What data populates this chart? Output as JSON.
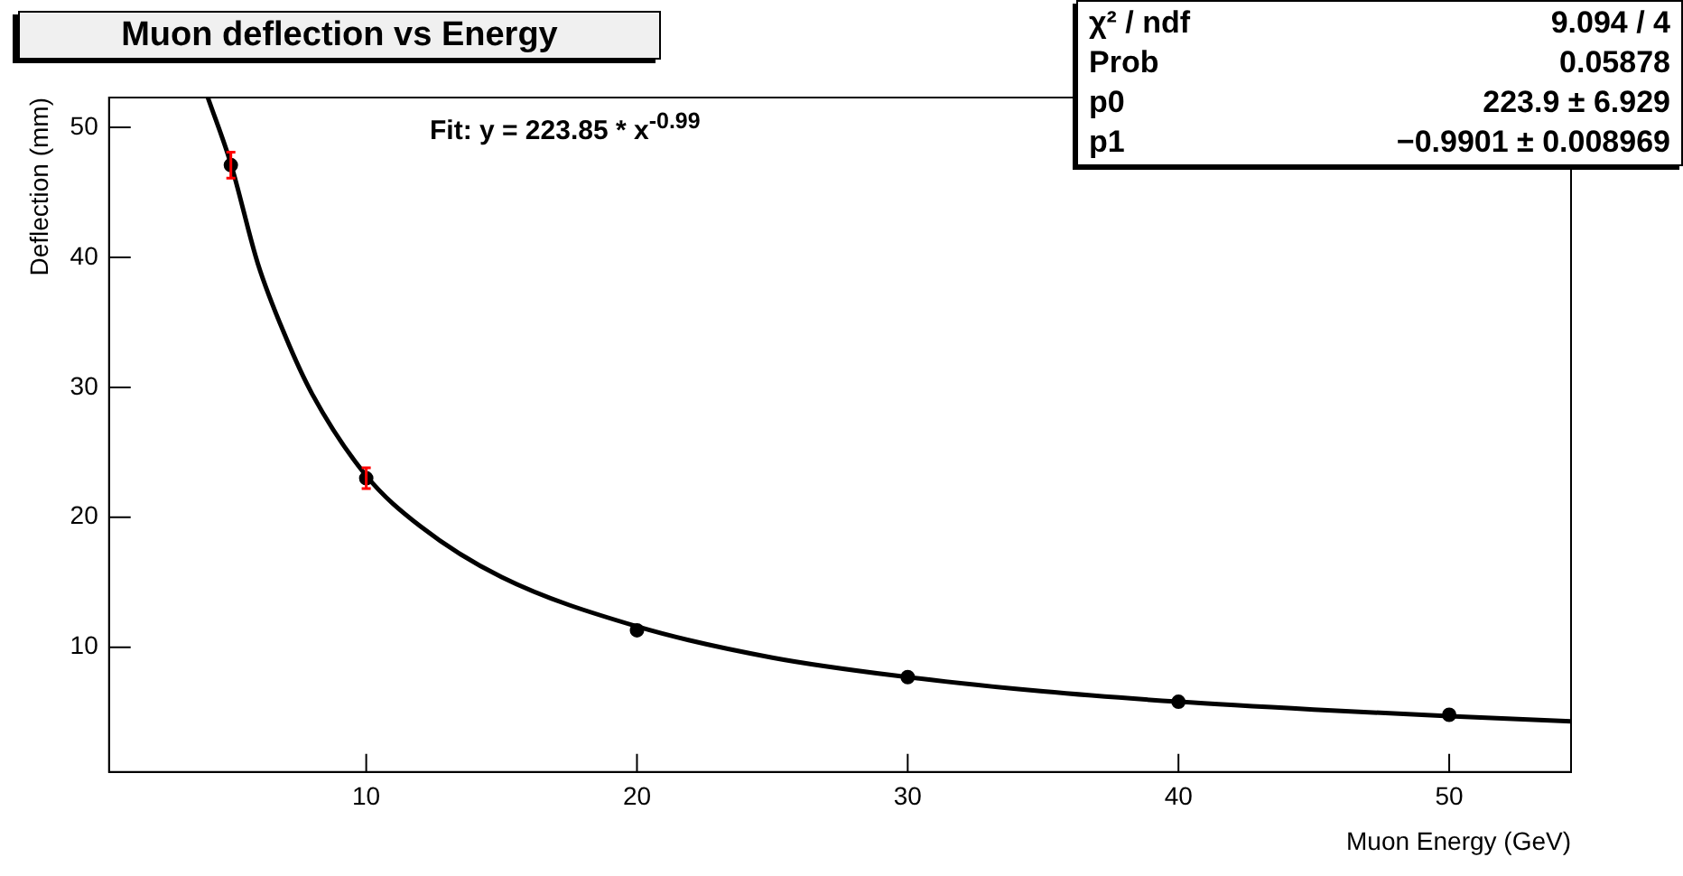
{
  "chart_data": {
    "type": "scatter",
    "title": "Muon deflection vs Energy",
    "xlabel": "Muon Energy (GeV)",
    "ylabel": "Deflection (mm)",
    "annotations": [
      "Fit: y = 223.85 * x$^{-0.99}$",
      "χ² / ndf",
      "9.094 / 4",
      "Prob",
      "0.05878",
      "p0",
      "223.9 ± 6.929",
      "p1",
      "−0.9901 ± 0.008969"
    ],
    "xlim": [
      0.5,
      54.5
    ],
    "ylim": [
      0.4,
      52.3
    ],
    "xticks": [
      10,
      20,
      30,
      40,
      50
    ],
    "yticks": [
      10,
      20,
      30,
      40,
      50
    ],
    "grid": false,
    "legend": false,
    "series": [
      {
        "type": "line",
        "color": "#000000",
        "x": [
          4.15,
          5,
          6,
          7,
          8,
          10,
          12,
          15,
          20,
          25,
          30,
          35,
          40,
          45,
          50,
          54.5
        ],
        "values": [
          52.3,
          47.2,
          39.5,
          34,
          29.5,
          23.2,
          19.3,
          15.4,
          11.6,
          9.2,
          7.7,
          6.6,
          5.8,
          5.2,
          4.7,
          4.3
        ]
      },
      {
        "color": "#000000",
        "marker": "circle",
        "x": [
          5,
          10,
          20,
          30,
          40,
          50
        ],
        "values": [
          47.1,
          23.0,
          11.3,
          7.7,
          5.8,
          4.8
        ],
        "errors": [
          1.0,
          0.8,
          null,
          null,
          null,
          null
        ]
      }
    ]
  }
}
